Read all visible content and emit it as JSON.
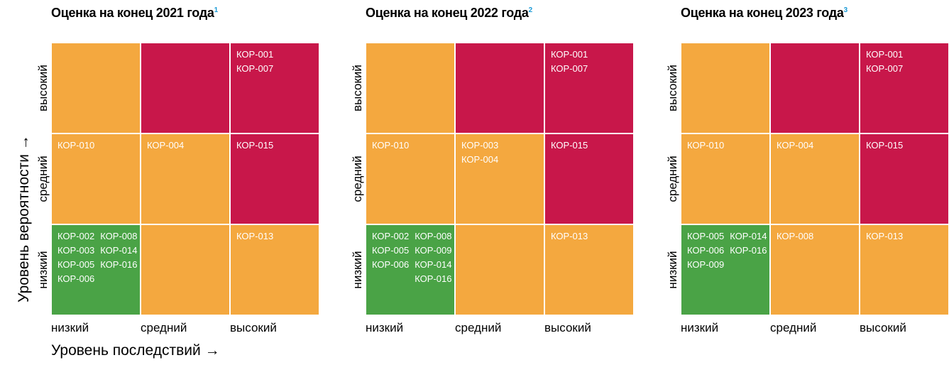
{
  "y_axis_label": "Уровень вероятности →",
  "x_axis_label": "Уровень последствий →",
  "matrices": [
    {
      "title": "Оценка на конец 2021 года",
      "footnote": "1",
      "row_labels": [
        "высокий",
        "средний",
        "низкий"
      ],
      "col_labels": [
        "низкий",
        "средний",
        "высокий"
      ],
      "cells": [
        [
          [],
          [],
          [
            [
              "КОР-001",
              "КОР-007"
            ]
          ]
        ],
        [
          [
            [
              "КОР-010"
            ]
          ],
          [
            [
              "КОР-004"
            ]
          ],
          [
            [
              "КОР-015"
            ]
          ]
        ],
        [
          [
            [
              "КОР-002",
              "КОР-003",
              "КОР-005",
              "КОР-006"
            ],
            [
              "КОР-008",
              "КОР-014",
              "КОР-016"
            ]
          ],
          [],
          [
            [
              "КОР-013"
            ]
          ]
        ]
      ]
    },
    {
      "title": "Оценка на конец 2022 года",
      "footnote": "2",
      "row_labels": [
        "высокий",
        "средний",
        "низкий"
      ],
      "col_labels": [
        "низкий",
        "средний",
        "высокий"
      ],
      "cells": [
        [
          [],
          [],
          [
            [
              "КОР-001",
              "КОР-007"
            ]
          ]
        ],
        [
          [
            [
              "КОР-010"
            ]
          ],
          [
            [
              "КОР-003",
              "КОР-004"
            ]
          ],
          [
            [
              "КОР-015"
            ]
          ]
        ],
        [
          [
            [
              "КОР-002",
              "КОР-005",
              "КОР-006"
            ],
            [
              "КОР-008",
              "КОР-009",
              "КОР-014",
              "КОР-016"
            ]
          ],
          [],
          [
            [
              "КОР-013"
            ]
          ]
        ]
      ]
    },
    {
      "title": "Оценка на конец 2023 года",
      "footnote": "3",
      "row_labels": [
        "высокий",
        "средний",
        "низкий"
      ],
      "col_labels": [
        "низкий",
        "средний",
        "высокий"
      ],
      "cells": [
        [
          [],
          [],
          [
            [
              "КОР-001",
              "КОР-007"
            ]
          ]
        ],
        [
          [
            [
              "КОР-010"
            ]
          ],
          [
            [
              "КОР-004"
            ]
          ],
          [
            [
              "КОР-015"
            ]
          ]
        ],
        [
          [
            [
              "КОР-005",
              "КОР-006",
              "КОР-009"
            ],
            [
              "КОР-014",
              "КОР-016"
            ]
          ],
          [
            [
              "КОР-008"
            ]
          ],
          [
            [
              "КОР-013"
            ]
          ]
        ]
      ]
    }
  ]
}
